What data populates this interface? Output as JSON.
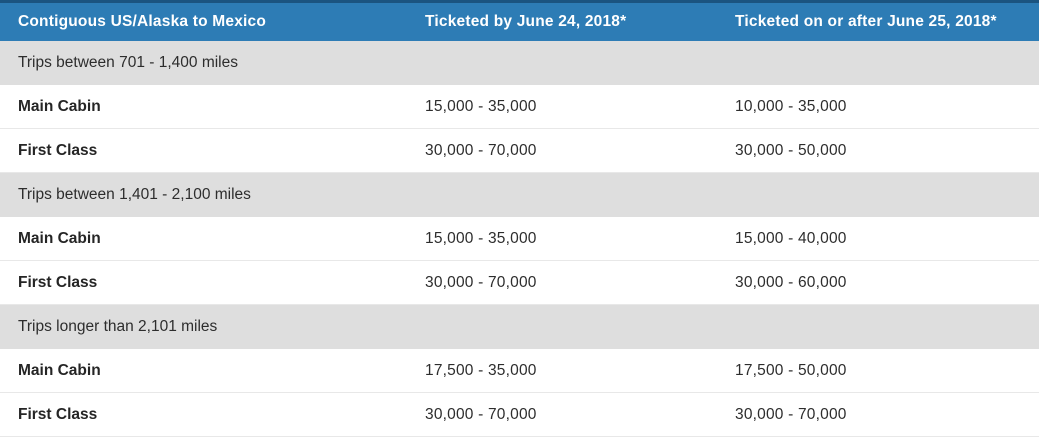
{
  "table": {
    "header": {
      "route": "Contiguous US/Alaska to Mexico",
      "ticketed_by": "Ticketed by June 24, 2018*",
      "ticketed_after": "Ticketed on or after June 25, 2018*"
    },
    "sections": [
      {
        "title": "Trips between 701 - 1,400 miles",
        "rows": [
          {
            "label": "Main Cabin",
            "ticketed_by": "15,000 - 35,000",
            "ticketed_after": "10,000 - 35,000"
          },
          {
            "label": "First Class",
            "ticketed_by": "30,000 - 70,000",
            "ticketed_after": "30,000 - 50,000"
          }
        ]
      },
      {
        "title": "Trips between 1,401 - 2,100 miles",
        "rows": [
          {
            "label": "Main Cabin",
            "ticketed_by": "15,000 - 35,000",
            "ticketed_after": "15,000 - 40,000"
          },
          {
            "label": "First Class",
            "ticketed_by": "30,000 - 70,000",
            "ticketed_after": "30,000 - 60,000"
          }
        ]
      },
      {
        "title": "Trips longer than 2,101 miles",
        "rows": [
          {
            "label": "Main Cabin",
            "ticketed_by": "17,500 - 35,000",
            "ticketed_after": "17,500 - 50,000"
          },
          {
            "label": "First Class",
            "ticketed_by": "30,000 - 70,000",
            "ticketed_after": "30,000 - 70,000"
          }
        ]
      }
    ],
    "colors": {
      "header_bg": "#2d7cb5",
      "header_top_strip": "#1b5480",
      "header_text": "#ffffff",
      "section_bg": "#dedede",
      "row_divider": "#e8e8e8",
      "body_text": "#2d2d2d"
    }
  },
  "chart_data": {
    "type": "table",
    "title": "Contiguous US/Alaska to Mexico award miles",
    "columns": [
      "Contiguous US/Alaska to Mexico",
      "Ticketed by June 24, 2018*",
      "Ticketed on or after June 25, 2018*"
    ],
    "rows": [
      [
        "Trips between 701 - 1,400 miles",
        "",
        ""
      ],
      [
        "Main Cabin",
        "15,000 - 35,000",
        "10,000 - 35,000"
      ],
      [
        "First Class",
        "30,000 - 70,000",
        "30,000 - 50,000"
      ],
      [
        "Trips between 1,401 - 2,100 miles",
        "",
        ""
      ],
      [
        "Main Cabin",
        "15,000 - 35,000",
        "15,000 - 40,000"
      ],
      [
        "First Class",
        "30,000 - 70,000",
        "30,000 - 60,000"
      ],
      [
        "Trips longer than 2,101 miles",
        "",
        ""
      ],
      [
        "Main Cabin",
        "17,500 - 35,000",
        "17,500 - 50,000"
      ],
      [
        "First Class",
        "30,000 - 70,000",
        "30,000 - 70,000"
      ]
    ]
  }
}
